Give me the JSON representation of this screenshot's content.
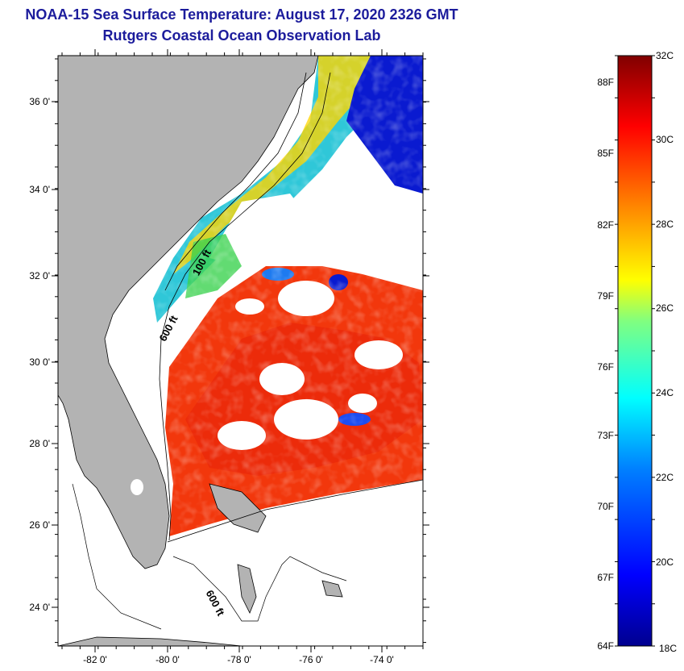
{
  "title": "NOAA-15 Sea Surface Temperature:  August 17, 2020 2326 GMT",
  "subtitle": "Rutgers Coastal Ocean Observation Lab",
  "map": {
    "lat_ticks": [
      "36 0'",
      "34 0'",
      "32 0'",
      "30 0'",
      "28 0'",
      "26 0'",
      "24 0'"
    ],
    "lon_ticks": [
      "-82 0'",
      "-80 0'",
      "-78 0'",
      "-76 0'",
      "-74 0'"
    ],
    "lat_range": [
      23,
      37
    ],
    "lon_range": [
      -83,
      -73
    ],
    "isobath_labels": [
      "100 ft",
      "600 ft",
      "600 ft"
    ],
    "colors": {
      "land": "#b3b3b3",
      "ocean_clear": "#ffffff",
      "warm_water": "#f2370c"
    }
  },
  "colorbar": {
    "f_labels": [
      "88F",
      "85F",
      "82F",
      "79F",
      "76F",
      "73F",
      "70F",
      "67F",
      "64F"
    ],
    "c_labels": [
      "32C",
      "30C",
      "28C",
      "26C",
      "24C",
      "22C",
      "20C",
      "18C"
    ],
    "range_c": [
      18,
      32
    ],
    "colormap": [
      "#00008f",
      "#0000ff",
      "#0080ff",
      "#00ffff",
      "#80ff80",
      "#ffff00",
      "#ff8000",
      "#ff0000",
      "#800000"
    ]
  }
}
